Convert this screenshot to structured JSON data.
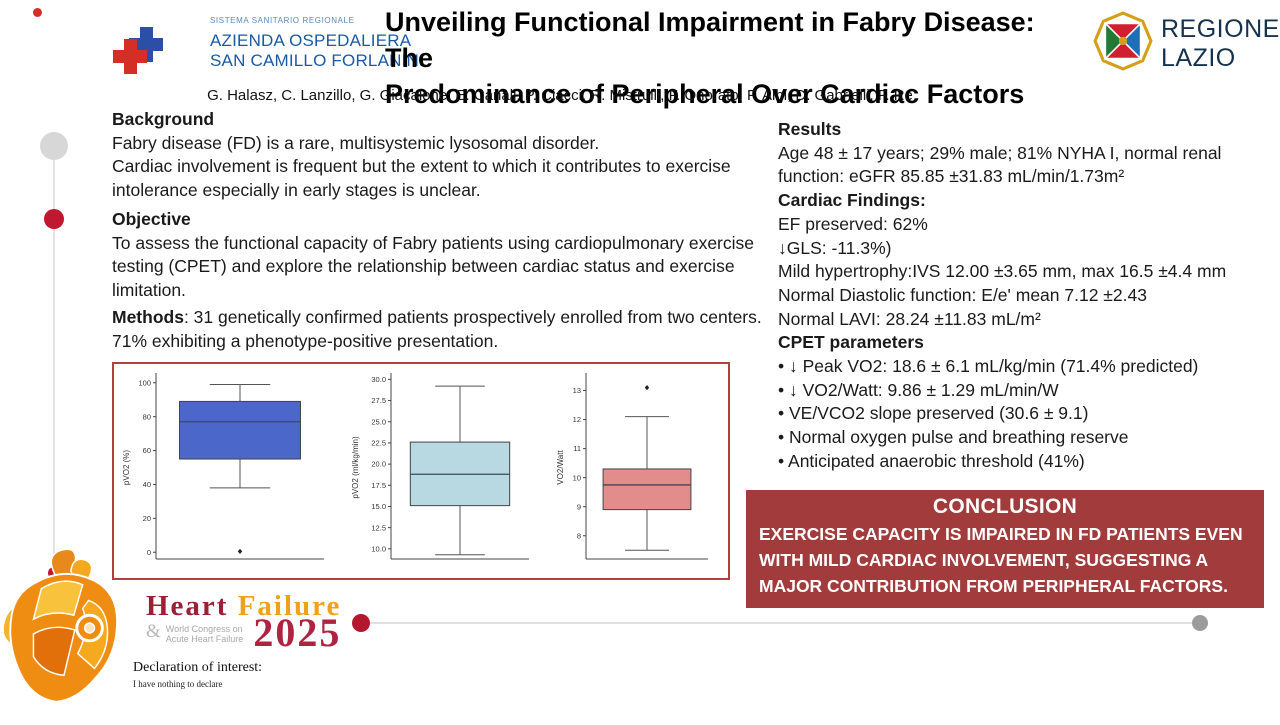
{
  "header": {
    "hospital_logo": {
      "line1": "SISTEMA SANITARIO REGIONALE",
      "line2": "AZIENDA OSPEDALIERA",
      "line3": "SAN CAMILLO FORLANINI"
    },
    "title_line1": "Unveiling Functional Impairment in Fabry Disease: The",
    "title_line2": "Predominance of Peripheral Over Cardiac Factors",
    "authors": "G. Halasz, C. Lanzillo, G. Giacalone, E. Canali, P. Ciacci, R. Mistrulli, F. Onorato, F. Albi, D. Gabrielli, F. Re",
    "region_logo": {
      "line1": "REGIONE",
      "line2": "LAZIO"
    }
  },
  "left_column": {
    "background_heading": "Background",
    "background_line1": "Fabry disease (FD) is a rare, multisystemic lysosomal disorder.",
    "background_line2": "Cardiac involvement is frequent but the extent to which it contributes to exercise intolerance especially in early stages is unclear.",
    "objective_heading": "Objective",
    "objective_text": "To assess the functional capacity of Fabry patients using cardiopulmonary exercise testing (CPET) and explore the relationship between cardiac status and exercise limitation.",
    "methods_label": "Methods",
    "methods_text": ": 31 genetically confirmed  patients  prospectively enrolled from two centers. 71% exhibiting a phenotype-positive presentation."
  },
  "results": {
    "heading": "Results",
    "intro": "Age 48 ± 17 years; 29% male; 81% NYHA I, normal renal function: eGFR 85.85 ±31.83 mL/min/1.73m²",
    "cardiac_heading": "Cardiac Findings:",
    "cardiac_lines": [
      "EF preserved: 62%",
      "↓GLS: -11.3%)",
      "Mild hypertrophy:IVS 12.00 ±3.65 mm, max 16.5 ±4.4 mm",
      "Normal Diastolic function: E/e' mean 7.12 ±2.43",
      "Normal LAVI: 28.24 ±11.83 mL/m²"
    ],
    "cpet_heading": "CPET  parameters",
    "cpet_bullets": [
      "• ↓ Peak VO2: 18.6 ± 6.1 mL/kg/min (71.4% predicted)",
      "• ↓ VO2/Watt: 9.86 ± 1.29 mL/min/W",
      "• VE/VCO2 slope preserved (30.6 ± 9.1)",
      "•  Normal oxygen pulse and breathing reserve",
      "•   Anticipated anaerobic threshold (41%)"
    ]
  },
  "conclusion": {
    "heading": "CONCLUSION",
    "text": "EXERCISE CAPACITY IS IMPAIRED IN FD PATIENTS EVEN WITH MILD CARDIAC INVOLVEMENT, SUGGESTING A MAJOR CONTRIBUTION FROM PERIPHERAL FACTORS."
  },
  "footer": {
    "congress_logo": {
      "word1": "Heart",
      "word2": "Failure",
      "amp": "&",
      "subtitle1": "World Congress on",
      "subtitle2": "Acute Heart Failure",
      "year": "2025"
    },
    "declaration_heading": "Declaration of interest:",
    "declaration_text": "I have nothing to declare"
  },
  "colors": {
    "accent_red_border": "#b3403f",
    "conclusion_bg": "#a23b3b",
    "hospital_blue": "#1a5aa5",
    "region_navy": "#16324f",
    "congress_red": "#9c1f35",
    "congress_orange": "#f0a11c",
    "timeline_red": "#c0182e",
    "timeline_gray": "#d7d7d7",
    "box1_fill": "#4a67c9",
    "box2_fill": "#b9d9e2",
    "box3_fill": "#e38c8c"
  },
  "chart_data": [
    {
      "type": "boxplot",
      "ylabel": "pVO2 (%)",
      "yticks": [
        0,
        20,
        40,
        60,
        80,
        100
      ],
      "ytick_labels": [
        "0",
        "20",
        "40",
        "60",
        "80",
        "100"
      ],
      "ylim": [
        -4,
        104
      ],
      "box_color": "#4a67c9",
      "stats": {
        "whisker_low": 38,
        "q1": 55,
        "median": 77,
        "q3": 89,
        "whisker_high": 99,
        "outliers": [
          0.5
        ]
      }
    },
    {
      "type": "boxplot",
      "ylabel": "pVO2 (ml/kg/min)",
      "yticks": [
        10.0,
        12.5,
        15.0,
        17.5,
        20.0,
        22.5,
        25.0,
        27.5,
        30.0
      ],
      "ytick_labels": [
        "10.0",
        "12.5",
        "15.0",
        "17.5",
        "20.0",
        "22.5",
        "25.0",
        "27.5",
        "30.0"
      ],
      "ylim": [
        8.8,
        30.4
      ],
      "box_color": "#b9d9e2",
      "stats": {
        "whisker_low": 9.3,
        "q1": 15.1,
        "median": 18.8,
        "q3": 22.6,
        "whisker_high": 29.2,
        "outliers": []
      }
    },
    {
      "type": "boxplot",
      "ylabel": "VO2/Watt",
      "yticks": [
        8,
        9,
        10,
        11,
        12,
        13
      ],
      "ytick_labels": [
        "8",
        "9",
        "10",
        "11",
        "12",
        "13"
      ],
      "ylim": [
        7.2,
        13.5
      ],
      "box_color": "#e38c8c",
      "stats": {
        "whisker_low": 7.5,
        "q1": 8.9,
        "median": 9.75,
        "q3": 10.3,
        "whisker_high": 12.1,
        "outliers": [
          13.1
        ]
      }
    }
  ]
}
